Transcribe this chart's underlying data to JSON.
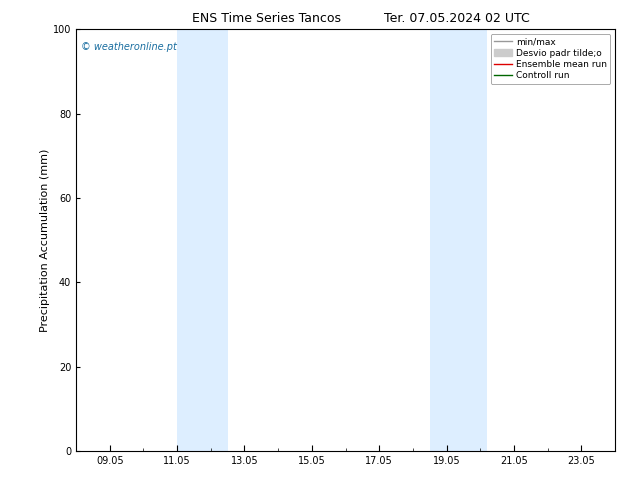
{
  "title": "ENS Time Series Tancos",
  "title2": "Ter. 07.05.2024 02 UTC",
  "ylabel": "Precipitation Accumulation (mm)",
  "watermark": "© weatheronline.pt",
  "ylim": [
    0,
    100
  ],
  "yticks": [
    0,
    20,
    40,
    60,
    80,
    100
  ],
  "xtick_labels": [
    "09.05",
    "11.05",
    "13.05",
    "15.05",
    "17.05",
    "19.05",
    "21.05",
    "23.05"
  ],
  "xmin": 8.0,
  "xmax": 24.0,
  "shade_bands": [
    {
      "xmin": 11.0,
      "xmax": 12.5
    },
    {
      "xmin": 18.5,
      "xmax": 20.2
    }
  ],
  "shade_color": "#ddeeff",
  "shade_alpha": 1.0,
  "background_color": "#ffffff",
  "legend_entries": [
    {
      "label": "min/max",
      "color": "#999999",
      "lw": 1.0,
      "type": "line"
    },
    {
      "label": "Desvio padr tilde;o",
      "color": "#cccccc",
      "lw": 5,
      "type": "band"
    },
    {
      "label": "Ensemble mean run",
      "color": "#dd0000",
      "lw": 1.0,
      "type": "line"
    },
    {
      "label": "Controll run",
      "color": "#006600",
      "lw": 1.0,
      "type": "line"
    }
  ],
  "title_fontsize": 9,
  "tick_fontsize": 7,
  "ylabel_fontsize": 8,
  "watermark_fontsize": 7,
  "watermark_color": "#1a6ea0"
}
